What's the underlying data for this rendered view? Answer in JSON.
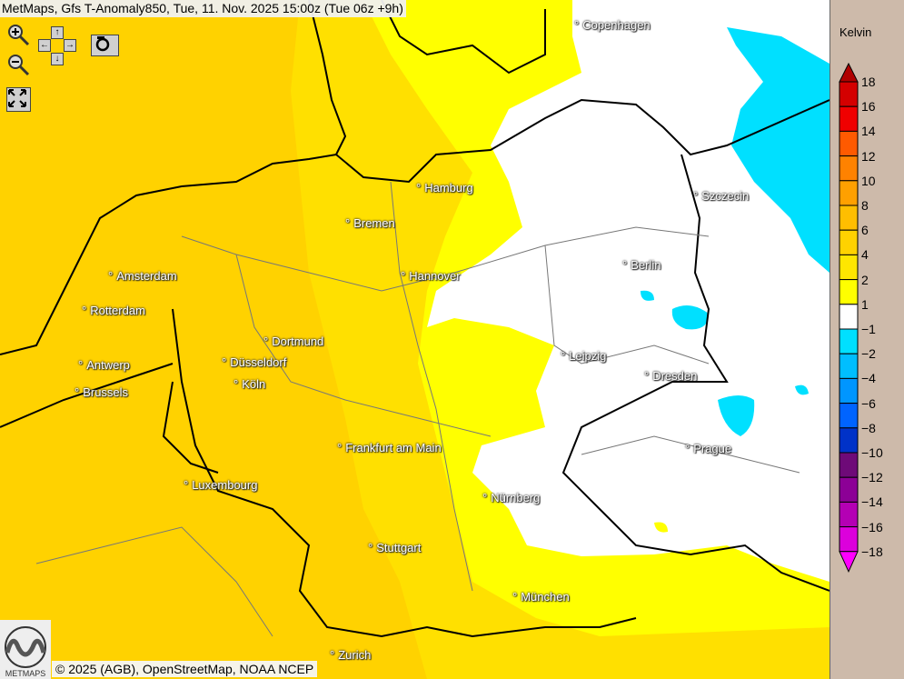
{
  "header": {
    "title": "MetMaps, Gfs T-Anomaly850, Tue, 11. Nov. 2025 15:00z (Tue 06z +9h)"
  },
  "controls": {
    "zoom_in": "zoom-in-icon",
    "zoom_out": "zoom-out-icon",
    "pan": "arrows-icon",
    "snapshot": "camera-icon",
    "fullscreen": "expand-icon",
    "arrows": {
      "up": "↑",
      "down": "↓",
      "left": "←",
      "right": "→"
    }
  },
  "cities": [
    "Copenhagen",
    "Hamburg",
    "Szczecin",
    "Bremen",
    "Berlin",
    "Amsterdam",
    "Hannover",
    "Rotterdam",
    "Dortmund",
    "Leipzig",
    "Antwerp",
    "Düsseldorf",
    "Dresden",
    "Köln",
    "Brussels",
    "Prague",
    "Frankfurt am Main",
    "Luxembourg",
    "Nürnberg",
    "Stuttgart",
    "München",
    "Zurich"
  ],
  "footer": {
    "credit": "© 2025 (AGB), OpenStreetMap, NOAA NCEP",
    "logo_text": "METMAPS"
  },
  "legend": {
    "unit": "Kelvin",
    "labels": [
      "18",
      "16",
      "14",
      "12",
      "10",
      "8",
      "6",
      "4",
      "2",
      "1",
      "−1",
      "−2",
      "−4",
      "−6",
      "−8",
      "−10",
      "−12",
      "−14",
      "−16",
      "−18"
    ],
    "colors": [
      "#B00000",
      "#D40000",
      "#F00000",
      "#FF5A00",
      "#FF8200",
      "#FFA000",
      "#FFBE00",
      "#FFD200",
      "#FFE600",
      "#FFFF00",
      "#FFFFFF",
      "#00E0FF",
      "#00BEFF",
      "#0096FF",
      "#0064FF",
      "#0032C8",
      "#6E0A78",
      "#8C0096",
      "#B400B4",
      "#DC00DC",
      "#FF00FF"
    ]
  }
}
